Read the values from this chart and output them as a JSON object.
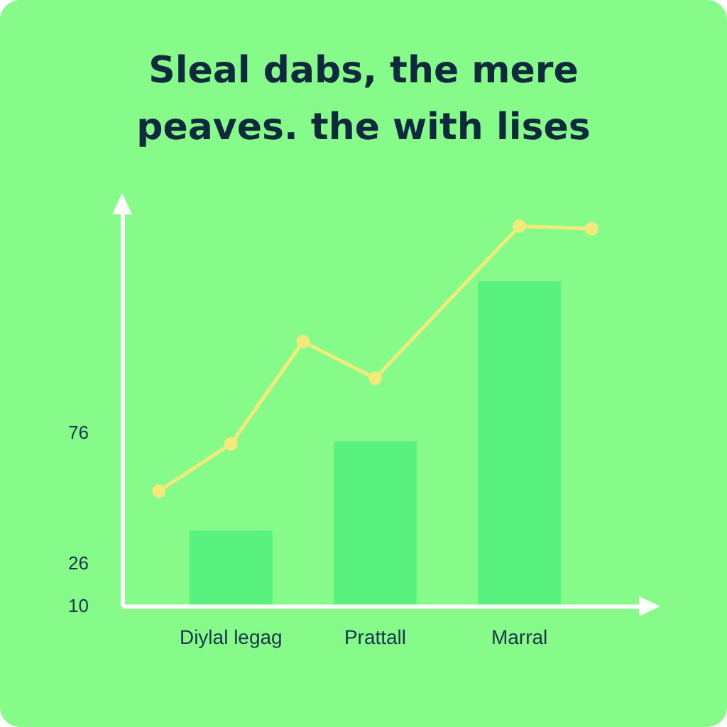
{
  "chart_data": {
    "type": "bar",
    "title": "Sleal dabs, the mere peaves. the with lises",
    "categories": [
      null,
      "Diylal legag",
      null,
      "Prattall",
      null,
      "Marral",
      null
    ],
    "series": [
      {
        "color": "#5af27e",
        "values": [
          null,
          39,
          null,
          73,
          null,
          134,
          null
        ]
      },
      {
        "type": "line",
        "color": "#f4ea7c",
        "values": [
          54,
          72,
          111,
          97,
          null,
          155,
          154
        ]
      }
    ],
    "ylim": [
      10,
      160
    ],
    "yticks": [
      10,
      26,
      76
    ],
    "grid": false,
    "legend": false,
    "marker": "circle",
    "line_style": "solid"
  }
}
